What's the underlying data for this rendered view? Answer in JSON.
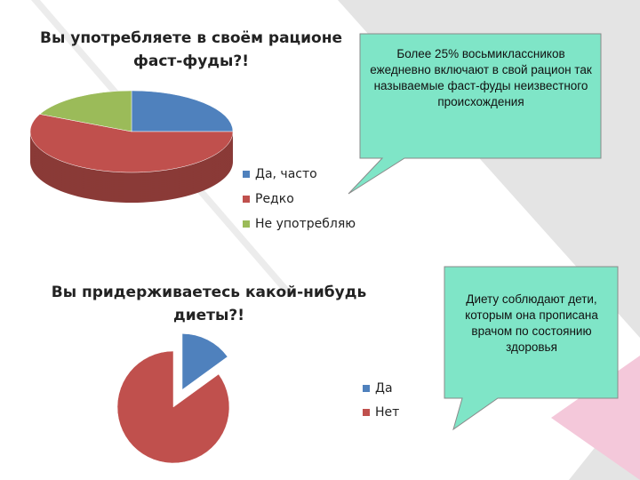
{
  "chart_data": [
    {
      "type": "pie3d",
      "title": "Вы употребляете в своём рационе фаст-фуды?!",
      "categories": [
        "Да, часто",
        "Редко",
        "Не употребляю"
      ],
      "values": [
        25,
        57,
        18
      ],
      "colors": [
        "#4f81bd",
        "#c0504d",
        "#9bbb59"
      ],
      "annotation": "Более 25% восьмиклассников ежедневно включают в свой рацион так называемые фаст-фуды неизвестного происхождения"
    },
    {
      "type": "pie",
      "title": "Вы придерживаетесь какой-нибудь диеты?!",
      "categories": [
        "Да",
        "Нет"
      ],
      "values": [
        15,
        85
      ],
      "colors": [
        "#4f81bd",
        "#c0504d"
      ],
      "annotation": "Диету соблюдают дети, которым она прописана врачом по состоянию здоровья"
    }
  ]
}
